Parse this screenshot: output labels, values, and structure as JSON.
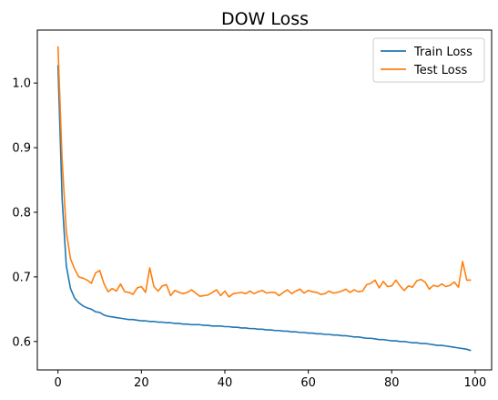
{
  "chart_data": {
    "type": "line",
    "title": "DOW Loss",
    "xlabel": "",
    "ylabel": "",
    "xlim": [
      -4.95,
      103.95
    ],
    "ylim": [
      0.556,
      1.082
    ],
    "xticks": [
      0,
      20,
      40,
      60,
      80,
      100
    ],
    "yticks": [
      0.6,
      0.7,
      0.8,
      0.9,
      1.0
    ],
    "grid": false,
    "legend_position": "top-right",
    "series": [
      {
        "name": "Train Loss",
        "color": "#1f77b4",
        "x": [
          0,
          1,
          2,
          3,
          4,
          5,
          6,
          7,
          8,
          9,
          10,
          11,
          12,
          13,
          14,
          15,
          16,
          17,
          18,
          19,
          20,
          21,
          22,
          23,
          24,
          25,
          26,
          27,
          28,
          29,
          30,
          31,
          32,
          33,
          34,
          35,
          36,
          37,
          38,
          39,
          40,
          41,
          42,
          43,
          44,
          45,
          46,
          47,
          48,
          49,
          50,
          51,
          52,
          53,
          54,
          55,
          56,
          57,
          58,
          59,
          60,
          61,
          62,
          63,
          64,
          65,
          66,
          67,
          68,
          69,
          70,
          71,
          72,
          73,
          74,
          75,
          76,
          77,
          78,
          79,
          80,
          81,
          82,
          83,
          84,
          85,
          86,
          87,
          88,
          89,
          90,
          91,
          92,
          93,
          94,
          95,
          96,
          97,
          98,
          99
        ],
        "values": [
          1.028,
          0.82,
          0.717,
          0.682,
          0.667,
          0.66,
          0.655,
          0.652,
          0.65,
          0.646,
          0.645,
          0.641,
          0.639,
          0.638,
          0.637,
          0.636,
          0.635,
          0.634,
          0.634,
          0.633,
          0.632,
          0.632,
          0.631,
          0.631,
          0.63,
          0.63,
          0.629,
          0.629,
          0.628,
          0.628,
          0.627,
          0.627,
          0.626,
          0.626,
          0.626,
          0.625,
          0.625,
          0.624,
          0.624,
          0.624,
          0.623,
          0.623,
          0.622,
          0.622,
          0.621,
          0.621,
          0.62,
          0.62,
          0.619,
          0.619,
          0.618,
          0.618,
          0.617,
          0.617,
          0.616,
          0.616,
          0.615,
          0.615,
          0.614,
          0.614,
          0.613,
          0.613,
          0.612,
          0.612,
          0.611,
          0.611,
          0.61,
          0.61,
          0.609,
          0.609,
          0.608,
          0.607,
          0.607,
          0.606,
          0.605,
          0.605,
          0.604,
          0.603,
          0.603,
          0.602,
          0.601,
          0.601,
          0.6,
          0.6,
          0.599,
          0.598,
          0.598,
          0.597,
          0.597,
          0.596,
          0.595,
          0.594,
          0.594,
          0.593,
          0.592,
          0.591,
          0.59,
          0.589,
          0.588,
          0.586
        ]
      },
      {
        "name": "Test Loss",
        "color": "#ff7f0e",
        "x": [
          0,
          1,
          2,
          3,
          4,
          5,
          6,
          7,
          8,
          9,
          10,
          11,
          12,
          13,
          14,
          15,
          16,
          17,
          18,
          19,
          20,
          21,
          22,
          23,
          24,
          25,
          26,
          27,
          28,
          29,
          30,
          31,
          32,
          33,
          34,
          35,
          36,
          37,
          38,
          39,
          40,
          41,
          42,
          43,
          44,
          45,
          46,
          47,
          48,
          49,
          50,
          51,
          52,
          53,
          54,
          55,
          56,
          57,
          58,
          59,
          60,
          61,
          62,
          63,
          64,
          65,
          66,
          67,
          68,
          69,
          70,
          71,
          72,
          73,
          74,
          75,
          76,
          77,
          78,
          79,
          80,
          81,
          82,
          83,
          84,
          85,
          86,
          87,
          88,
          89,
          90,
          91,
          92,
          93,
          94,
          95,
          96,
          97,
          98,
          99
        ],
        "values": [
          1.057,
          0.88,
          0.77,
          0.728,
          0.712,
          0.7,
          0.698,
          0.695,
          0.69,
          0.706,
          0.71,
          0.69,
          0.677,
          0.682,
          0.678,
          0.689,
          0.677,
          0.676,
          0.673,
          0.683,
          0.685,
          0.676,
          0.714,
          0.685,
          0.678,
          0.686,
          0.688,
          0.671,
          0.679,
          0.676,
          0.674,
          0.676,
          0.68,
          0.675,
          0.67,
          0.671,
          0.672,
          0.676,
          0.68,
          0.671,
          0.678,
          0.669,
          0.674,
          0.675,
          0.676,
          0.674,
          0.678,
          0.674,
          0.677,
          0.679,
          0.675,
          0.676,
          0.676,
          0.671,
          0.676,
          0.68,
          0.674,
          0.678,
          0.681,
          0.675,
          0.679,
          0.677,
          0.676,
          0.673,
          0.674,
          0.678,
          0.675,
          0.676,
          0.678,
          0.681,
          0.676,
          0.68,
          0.677,
          0.678,
          0.688,
          0.69,
          0.695,
          0.683,
          0.693,
          0.685,
          0.686,
          0.695,
          0.686,
          0.679,
          0.686,
          0.684,
          0.694,
          0.696,
          0.692,
          0.681,
          0.687,
          0.685,
          0.689,
          0.685,
          0.687,
          0.692,
          0.684,
          0.724,
          0.695,
          0.695
        ]
      }
    ]
  }
}
